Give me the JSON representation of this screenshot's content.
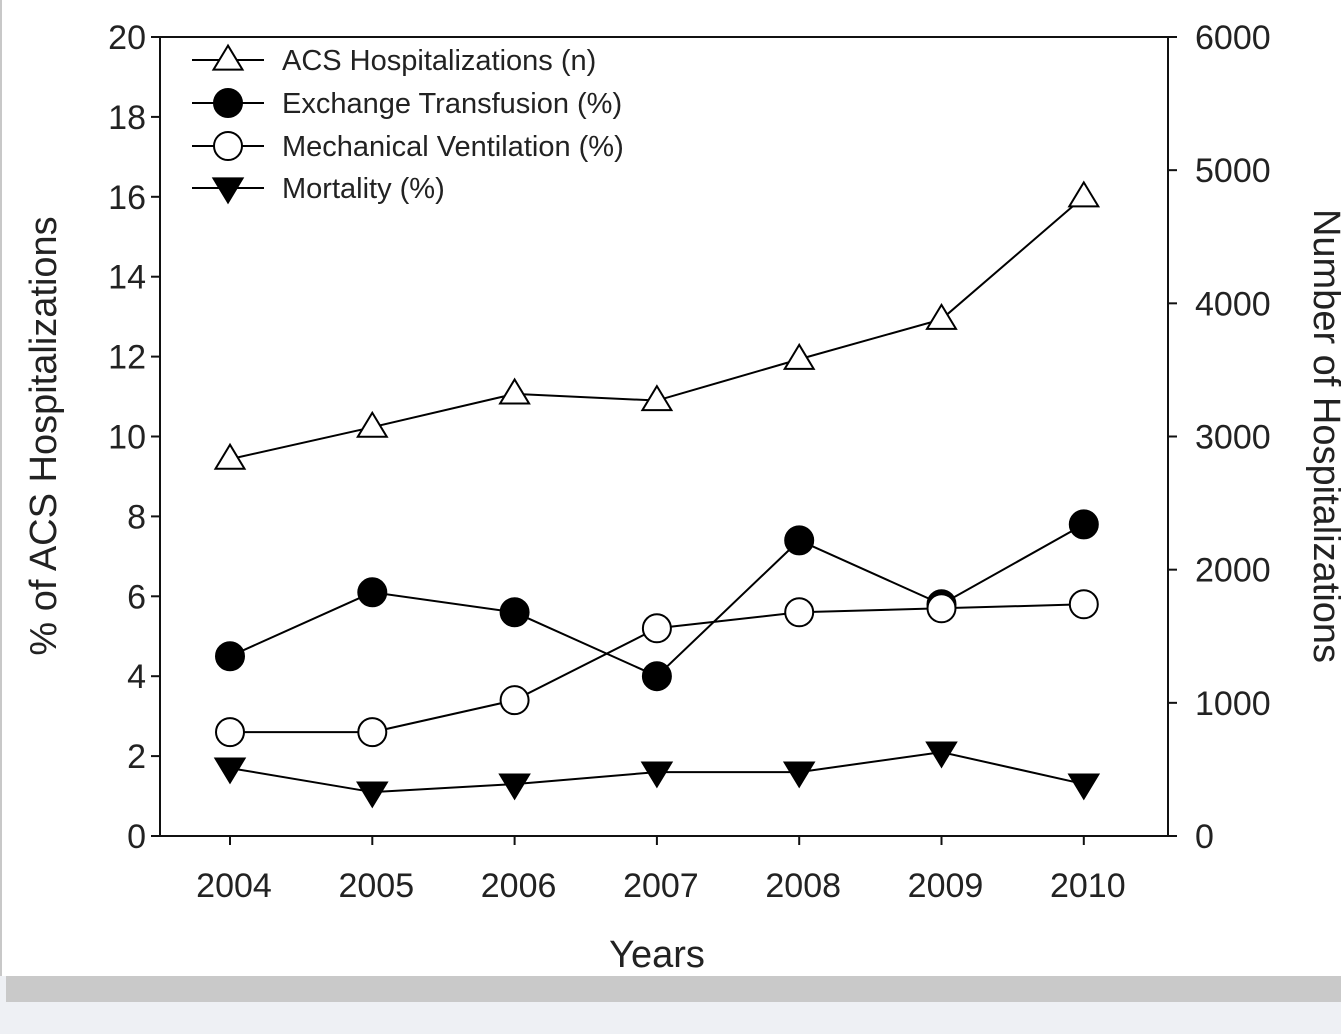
{
  "chart_data": {
    "type": "line",
    "categories": [
      "2004",
      "2005",
      "2006",
      "2007",
      "2008",
      "2009",
      "2010"
    ],
    "xlabel": "Years",
    "ylabel_left": "% of ACS Hospitalizations",
    "ylabel_right": "Number of Hospitalizations",
    "ylim_left": [
      0,
      20
    ],
    "ylim_right": [
      0,
      6000
    ],
    "yticks_left": [
      "0",
      "2",
      "4",
      "6",
      "8",
      "10",
      "12",
      "14",
      "16",
      "18",
      "20"
    ],
    "yticks_right": [
      "0",
      "1000",
      "2000",
      "3000",
      "4000",
      "5000",
      "6000"
    ],
    "grid": false,
    "legend_position": "top-left",
    "series": [
      {
        "name": "ACS Hospitalizations (n)",
        "axis": "right",
        "marker": "triangle-up-open",
        "values": [
          2830,
          3070,
          3320,
          3270,
          3580,
          3880,
          4800
        ]
      },
      {
        "name": "Exchange Transfusion (%)",
        "axis": "left",
        "marker": "circle-filled",
        "values": [
          4.5,
          6.1,
          5.6,
          4.0,
          7.4,
          5.8,
          7.8
        ]
      },
      {
        "name": "Mechanical Ventilation (%)",
        "axis": "left",
        "marker": "circle-open",
        "values": [
          2.6,
          2.6,
          3.4,
          5.2,
          5.6,
          5.7,
          5.8
        ]
      },
      {
        "name": "Mortality (%)",
        "axis": "left",
        "marker": "triangle-down-filled",
        "values": [
          1.7,
          1.1,
          1.3,
          1.6,
          1.6,
          2.1,
          1.3
        ]
      }
    ]
  }
}
